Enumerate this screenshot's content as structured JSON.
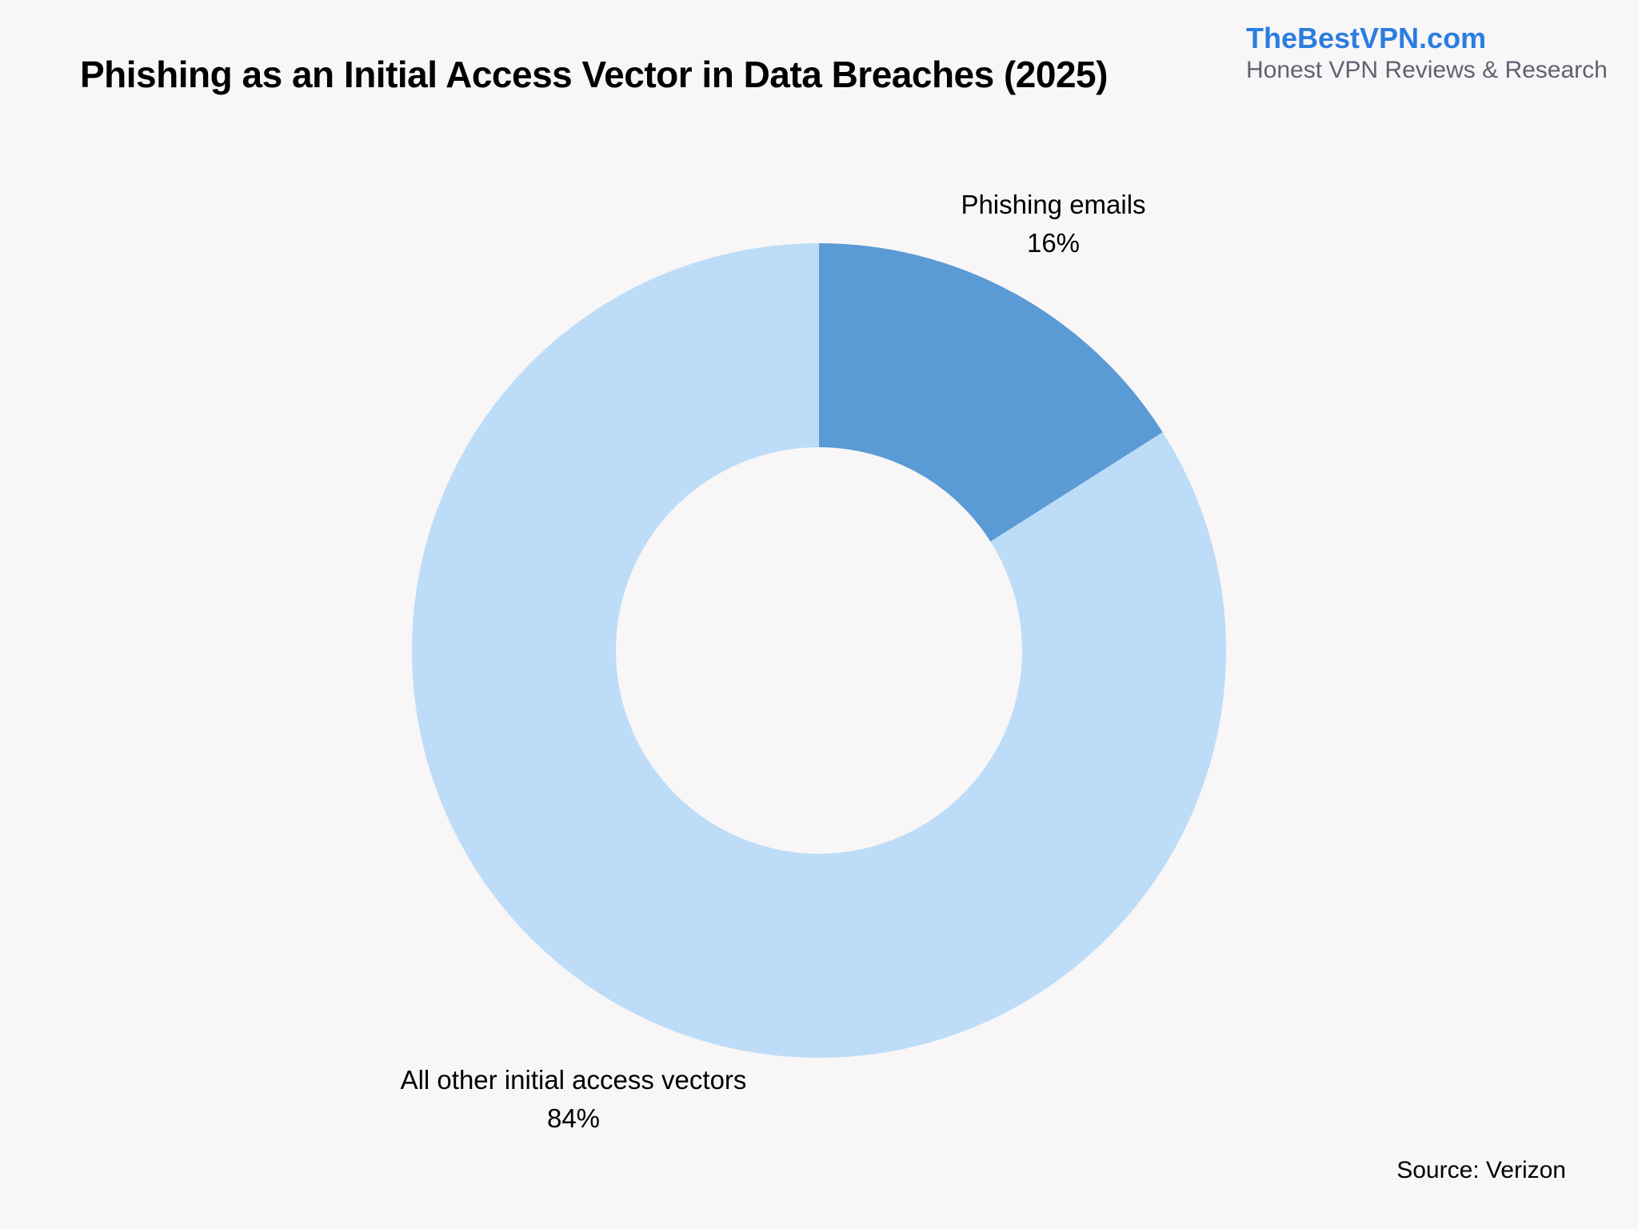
{
  "header": {
    "title": "Phishing as an Initial Access Vector in Data Breaches (2025)"
  },
  "brand": {
    "name": "TheBestVPN.com",
    "tagline": "Honest VPN Reviews & Research",
    "color": "#2b7de0"
  },
  "footer": {
    "source": "Source: Verizon"
  },
  "colors": {
    "background": "#f8f6f7",
    "phishing": "#5b9bd5",
    "other": "#bddcf7"
  },
  "chart_data": {
    "type": "pie",
    "subtype": "donut",
    "title": "Phishing as an Initial Access Vector in Data Breaches (2025)",
    "categories": [
      "Phishing emails",
      "All other initial access vectors"
    ],
    "values": [
      16,
      84
    ],
    "unit": "%",
    "labels": [
      {
        "name": "Phishing emails",
        "value": "16%"
      },
      {
        "name": "All other initial access vectors",
        "value": "84%"
      }
    ],
    "colors": [
      "#5b9bd5",
      "#bddcf7"
    ],
    "start_angle": "12 o'clock, clockwise",
    "legend": "none (direct labels)",
    "source": "Verizon"
  }
}
